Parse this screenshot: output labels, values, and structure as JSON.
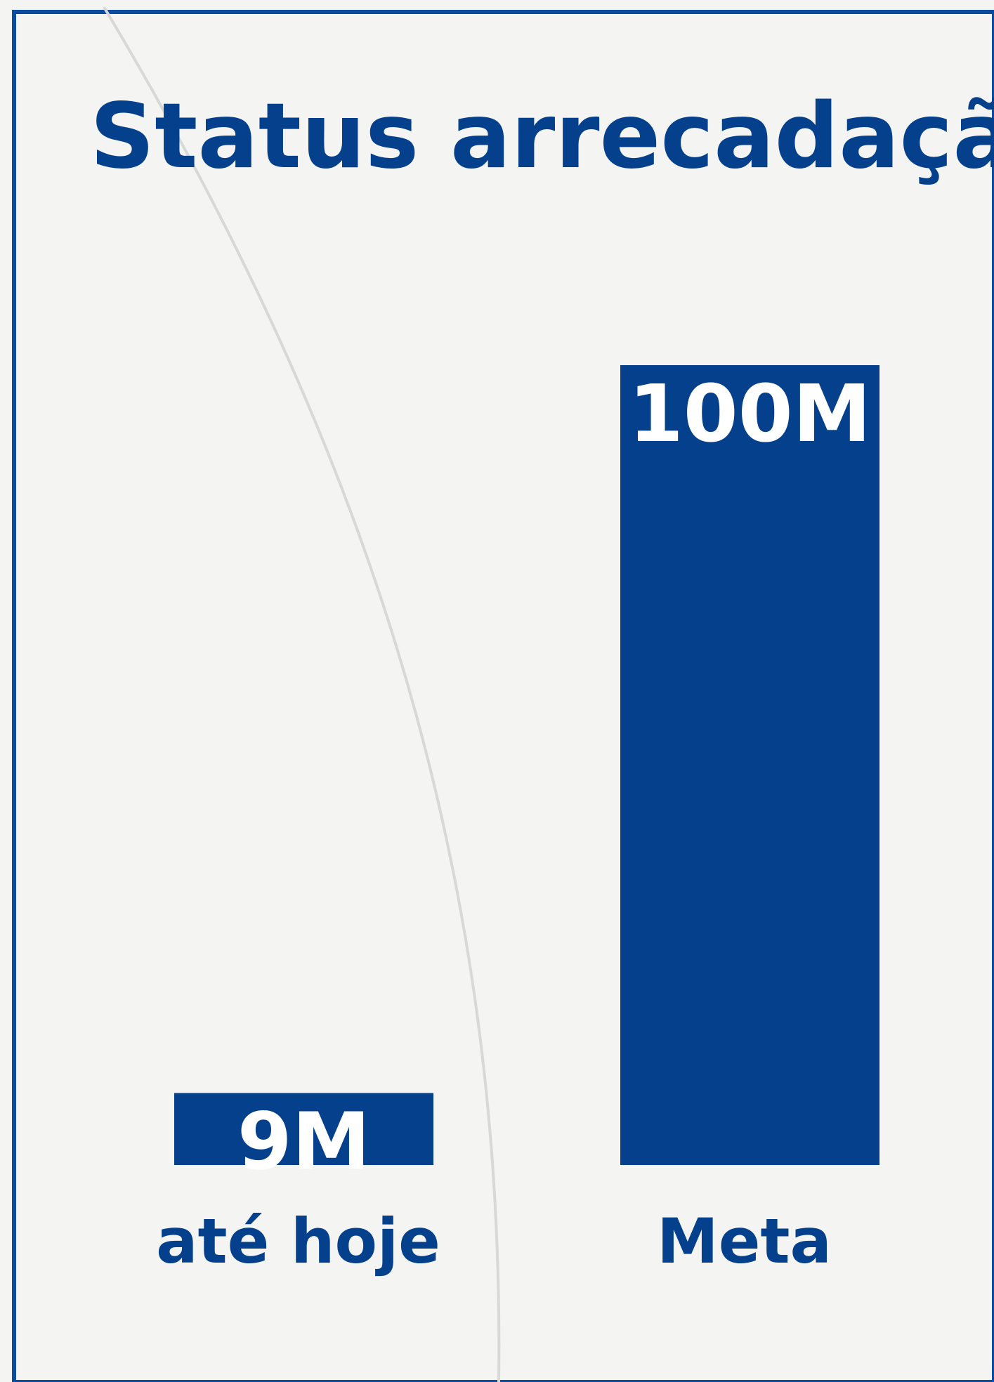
{
  "colors": {
    "background": "#f4f4f2",
    "bar": "#05408c",
    "border": "#0b4ba0",
    "text": "#05408c",
    "bar_text": "#ffffff"
  },
  "chart_data": {
    "type": "bar",
    "title": "Status arrecadação",
    "categories": [
      "até hoje",
      "Meta"
    ],
    "values": [
      9,
      100
    ],
    "value_labels": [
      "9M",
      "100M"
    ],
    "unit": "M",
    "ylim": [
      0,
      100
    ],
    "grid": false,
    "axes_visible": false
  }
}
